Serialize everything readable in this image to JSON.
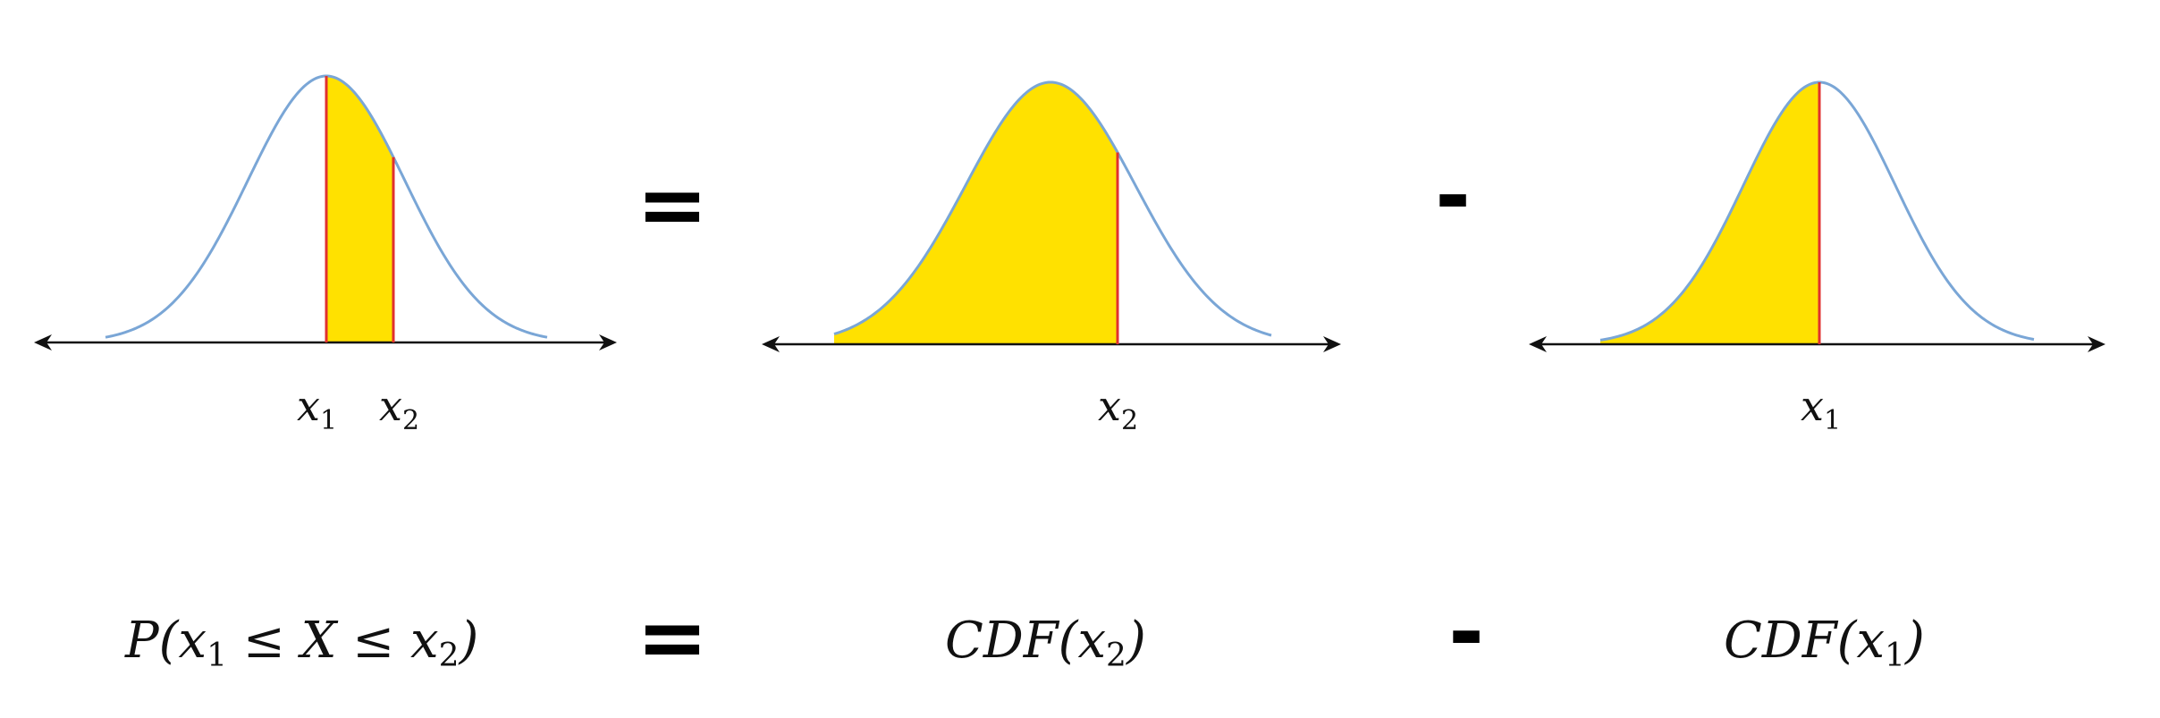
{
  "panels": [
    {
      "shade": "between",
      "labels": [
        {
          "var": "x",
          "sub": "1"
        },
        {
          "var": "x",
          "sub": "2"
        }
      ]
    },
    {
      "shade": "left-of-x2",
      "labels": [
        {
          "var": "x",
          "sub": "2"
        }
      ]
    },
    {
      "shade": "left-of-x1",
      "labels": [
        {
          "var": "x",
          "sub": "1"
        }
      ]
    }
  ],
  "operators": {
    "equals": "=",
    "minus": "-"
  },
  "formula": {
    "prob": {
      "prefix": "P(",
      "v1": "x",
      "s1": "1",
      "le1": " ≤ ",
      "X": "X",
      "le2": " ≤ ",
      "v2": "x",
      "s2": "2",
      "close": ")"
    },
    "cdf_x2": {
      "prefix": "CDF(",
      "v": "x",
      "s": "2",
      "close": ")"
    },
    "cdf_x1": {
      "prefix": "CDF(",
      "v": "x",
      "s": "1",
      "close": ")"
    }
  },
  "colors": {
    "curve": "#7aa6d6",
    "shade": "#ffe100",
    "marker": "#e0312f",
    "axis": "#111111"
  }
}
